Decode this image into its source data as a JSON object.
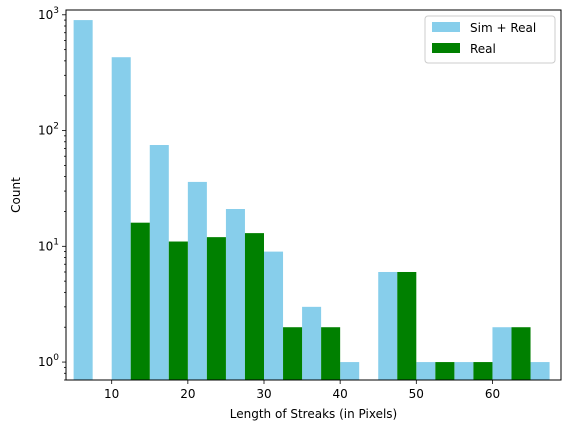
{
  "chart_data": {
    "type": "bar",
    "xlabel": "Length of Streaks (in Pixels)",
    "ylabel": "Count",
    "yscale": "log",
    "ylim": [
      0.7,
      1100
    ],
    "xlim": [
      4,
      69
    ],
    "x_ticks": [
      {
        "value": 10,
        "label": "10"
      },
      {
        "value": 20,
        "label": "20"
      },
      {
        "value": 30,
        "label": "30"
      },
      {
        "value": 40,
        "label": "40"
      },
      {
        "value": 50,
        "label": "50"
      },
      {
        "value": 60,
        "label": "60"
      }
    ],
    "y_ticks": [
      {
        "value": 1,
        "base": "10",
        "exp": "0"
      },
      {
        "value": 10,
        "base": "10",
        "exp": "1"
      },
      {
        "value": 100,
        "base": "10",
        "exp": "2"
      },
      {
        "value": 1000,
        "base": "10",
        "exp": "3"
      }
    ],
    "bin_width": 5,
    "bin_starts": [
      5,
      10,
      15,
      20,
      25,
      30,
      35,
      40,
      45,
      50,
      55,
      60,
      65
    ],
    "series": [
      {
        "name": "Sim + Real",
        "color": "#87ceeb",
        "values": [
          900,
          430,
          75,
          36,
          21,
          9,
          3,
          1,
          6,
          1,
          1,
          2,
          1
        ]
      },
      {
        "name": "Real",
        "color": "#008000",
        "values": [
          0,
          16,
          11,
          12,
          13,
          2,
          2,
          0,
          6,
          1,
          1,
          2,
          0
        ]
      }
    ],
    "legend_position": "top-right",
    "grid": false
  }
}
